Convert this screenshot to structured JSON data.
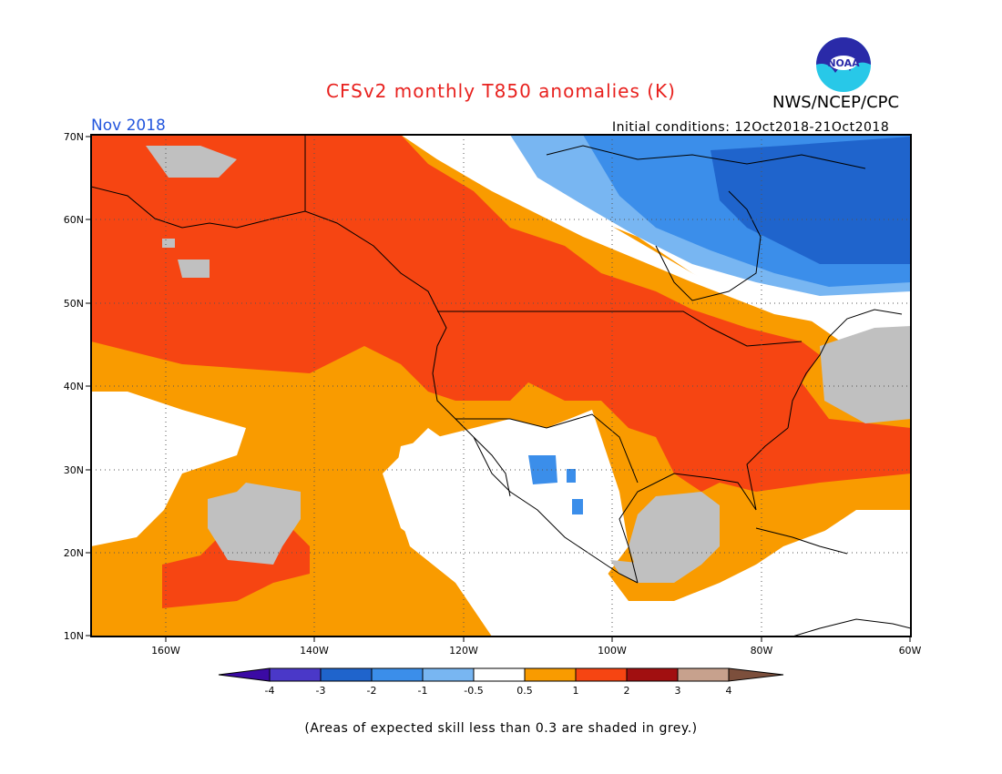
{
  "header": {
    "title": "CFSv2 monthly T850 anomalies (K)",
    "agency": "NWS/NCEP/CPC",
    "month": "Nov 2018",
    "initial_conditions": "Initial conditions: 12Oct2018-21Oct2018",
    "logo_text": "NOAA"
  },
  "footnote": "(Areas of expected skill less than 0.3 are shaded in grey.)",
  "axes": {
    "lat_labels": [
      "70N",
      "60N",
      "50N",
      "40N",
      "30N",
      "20N",
      "10N"
    ],
    "lon_labels": [
      "160W",
      "140W",
      "120W",
      "100W",
      "80W",
      "60W"
    ]
  },
  "colorbar": {
    "labels": [
      "-4",
      "-3",
      "-2",
      "-1",
      "-0.5",
      "0.5",
      "1",
      "2",
      "3",
      "4"
    ],
    "colors": [
      "#3b0aa4",
      "#4a38c8",
      "#1f64cc",
      "#3b8eea",
      "#78b6f2",
      "#ffffff",
      "#f99b00",
      "#f64512",
      "#a10f10",
      "#c7a18d",
      "#7c4f3c"
    ]
  },
  "palette": {
    "grey": "#c0c0c0",
    "white": "#ffffff",
    "orange": "#f99b00",
    "red": "#f64512",
    "light_blue": "#78b6f2",
    "mid_blue": "#3b8eea",
    "dark_blue": "#1f64cc"
  }
}
